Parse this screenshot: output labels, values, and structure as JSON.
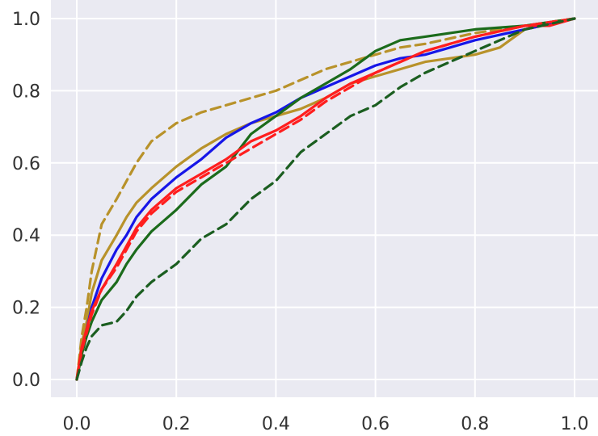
{
  "chart_data": {
    "type": "line",
    "title": "",
    "xlabel": "",
    "ylabel": "",
    "xlim": [
      -0.05,
      1.03
    ],
    "ylim": [
      -0.05,
      1.03
    ],
    "grid": true,
    "background": "#eaeaf2",
    "x_ticks": [
      "0.0",
      "0.2",
      "0.4",
      "0.6",
      "0.8",
      "1.0"
    ],
    "y_ticks": [
      "0.0",
      "0.2",
      "0.4",
      "0.6",
      "0.8",
      "1.0"
    ],
    "series": [
      {
        "color": "#b8922a",
        "style": "dashed",
        "x": [
          0.0,
          0.01,
          0.02,
          0.03,
          0.05,
          0.08,
          0.1,
          0.12,
          0.15,
          0.18,
          0.2,
          0.25,
          0.3,
          0.35,
          0.4,
          0.45,
          0.5,
          0.55,
          0.6,
          0.65,
          0.7,
          0.8,
          0.9,
          1.0
        ],
        "y": [
          0.0,
          0.12,
          0.2,
          0.3,
          0.43,
          0.5,
          0.55,
          0.6,
          0.66,
          0.69,
          0.71,
          0.74,
          0.76,
          0.78,
          0.8,
          0.83,
          0.86,
          0.88,
          0.9,
          0.92,
          0.93,
          0.96,
          0.98,
          1.0
        ]
      },
      {
        "color": "#b8922a",
        "style": "solid",
        "x": [
          0.0,
          0.01,
          0.02,
          0.03,
          0.05,
          0.08,
          0.1,
          0.12,
          0.15,
          0.2,
          0.25,
          0.3,
          0.35,
          0.4,
          0.45,
          0.5,
          0.55,
          0.6,
          0.65,
          0.7,
          0.75,
          0.8,
          0.85,
          0.9,
          1.0
        ],
        "y": [
          0.0,
          0.1,
          0.16,
          0.24,
          0.33,
          0.4,
          0.45,
          0.49,
          0.53,
          0.59,
          0.64,
          0.68,
          0.71,
          0.73,
          0.75,
          0.78,
          0.82,
          0.84,
          0.86,
          0.88,
          0.89,
          0.9,
          0.92,
          0.97,
          1.0
        ]
      },
      {
        "color": "#1616e8",
        "style": "solid",
        "x": [
          0.0,
          0.01,
          0.02,
          0.03,
          0.05,
          0.08,
          0.1,
          0.12,
          0.15,
          0.2,
          0.25,
          0.3,
          0.35,
          0.4,
          0.45,
          0.5,
          0.55,
          0.6,
          0.65,
          0.7,
          0.75,
          0.8,
          0.9,
          1.0
        ],
        "y": [
          0.0,
          0.08,
          0.14,
          0.2,
          0.28,
          0.36,
          0.4,
          0.45,
          0.5,
          0.56,
          0.61,
          0.67,
          0.71,
          0.74,
          0.78,
          0.81,
          0.84,
          0.87,
          0.89,
          0.9,
          0.92,
          0.94,
          0.97,
          1.0
        ]
      },
      {
        "color": "#1b6b1b",
        "style": "solid",
        "x": [
          0.0,
          0.01,
          0.02,
          0.03,
          0.05,
          0.08,
          0.1,
          0.12,
          0.15,
          0.2,
          0.25,
          0.3,
          0.35,
          0.4,
          0.45,
          0.5,
          0.55,
          0.6,
          0.65,
          0.7,
          0.75,
          0.8,
          0.9,
          1.0
        ],
        "y": [
          0.0,
          0.07,
          0.12,
          0.16,
          0.22,
          0.27,
          0.32,
          0.36,
          0.41,
          0.47,
          0.54,
          0.59,
          0.68,
          0.73,
          0.78,
          0.82,
          0.86,
          0.91,
          0.94,
          0.95,
          0.96,
          0.97,
          0.98,
          1.0
        ]
      },
      {
        "color": "#ff1e1e",
        "style": "dashed",
        "x": [
          0.0,
          0.01,
          0.02,
          0.03,
          0.05,
          0.08,
          0.1,
          0.12,
          0.15,
          0.2,
          0.25,
          0.3,
          0.35,
          0.4,
          0.45,
          0.5,
          0.55,
          0.6,
          0.65,
          0.7,
          0.8,
          0.9,
          1.0
        ],
        "y": [
          0.0,
          0.08,
          0.13,
          0.18,
          0.25,
          0.31,
          0.36,
          0.41,
          0.46,
          0.52,
          0.56,
          0.6,
          0.64,
          0.68,
          0.72,
          0.77,
          0.81,
          0.85,
          0.88,
          0.91,
          0.95,
          0.98,
          1.0
        ]
      },
      {
        "color": "#ff1e1e",
        "style": "solid",
        "x": [
          0.0,
          0.01,
          0.02,
          0.03,
          0.05,
          0.08,
          0.1,
          0.12,
          0.15,
          0.2,
          0.25,
          0.3,
          0.35,
          0.4,
          0.45,
          0.5,
          0.55,
          0.6,
          0.65,
          0.7,
          0.8,
          0.9,
          0.94,
          0.95,
          1.0
        ],
        "y": [
          0.0,
          0.09,
          0.14,
          0.19,
          0.25,
          0.32,
          0.37,
          0.42,
          0.47,
          0.53,
          0.57,
          0.61,
          0.66,
          0.69,
          0.73,
          0.78,
          0.82,
          0.85,
          0.88,
          0.91,
          0.95,
          0.98,
          0.98,
          0.98,
          1.0
        ]
      },
      {
        "color": "#1b5e20",
        "style": "dashed",
        "x": [
          0.0,
          0.01,
          0.02,
          0.03,
          0.05,
          0.08,
          0.1,
          0.12,
          0.15,
          0.18,
          0.2,
          0.25,
          0.3,
          0.35,
          0.4,
          0.45,
          0.5,
          0.55,
          0.6,
          0.65,
          0.7,
          0.75,
          0.8,
          0.85,
          0.9,
          1.0
        ],
        "y": [
          0.0,
          0.05,
          0.09,
          0.12,
          0.15,
          0.16,
          0.19,
          0.23,
          0.27,
          0.3,
          0.32,
          0.39,
          0.43,
          0.5,
          0.55,
          0.63,
          0.68,
          0.73,
          0.76,
          0.81,
          0.85,
          0.88,
          0.91,
          0.94,
          0.97,
          1.0
        ]
      }
    ]
  }
}
